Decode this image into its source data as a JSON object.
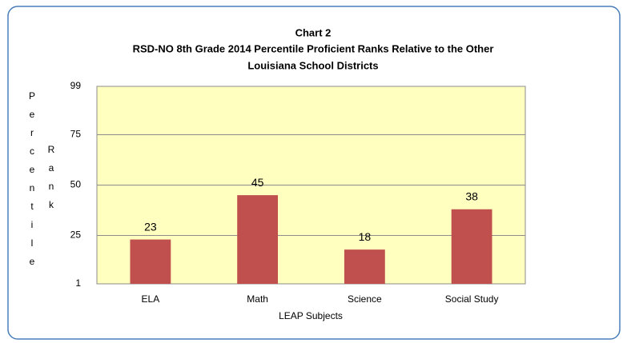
{
  "chart_data": {
    "type": "bar",
    "title": [
      "Chart 2",
      "RSD-NO 8th Grade 2014 Percentile Proficient Ranks Relative to the Other",
      "Louisiana School Districts"
    ],
    "categories": [
      "ELA",
      "Math",
      "Science",
      "Social Study"
    ],
    "values": [
      23,
      45,
      18,
      38
    ],
    "color": "#c0504d",
    "x_label": "LEAP Subjects",
    "y_label": [
      "Percentile",
      "Rank"
    ],
    "ylim": [
      1,
      99
    ],
    "yticks": [
      1,
      25,
      50,
      75,
      99
    ],
    "grid": true
  }
}
